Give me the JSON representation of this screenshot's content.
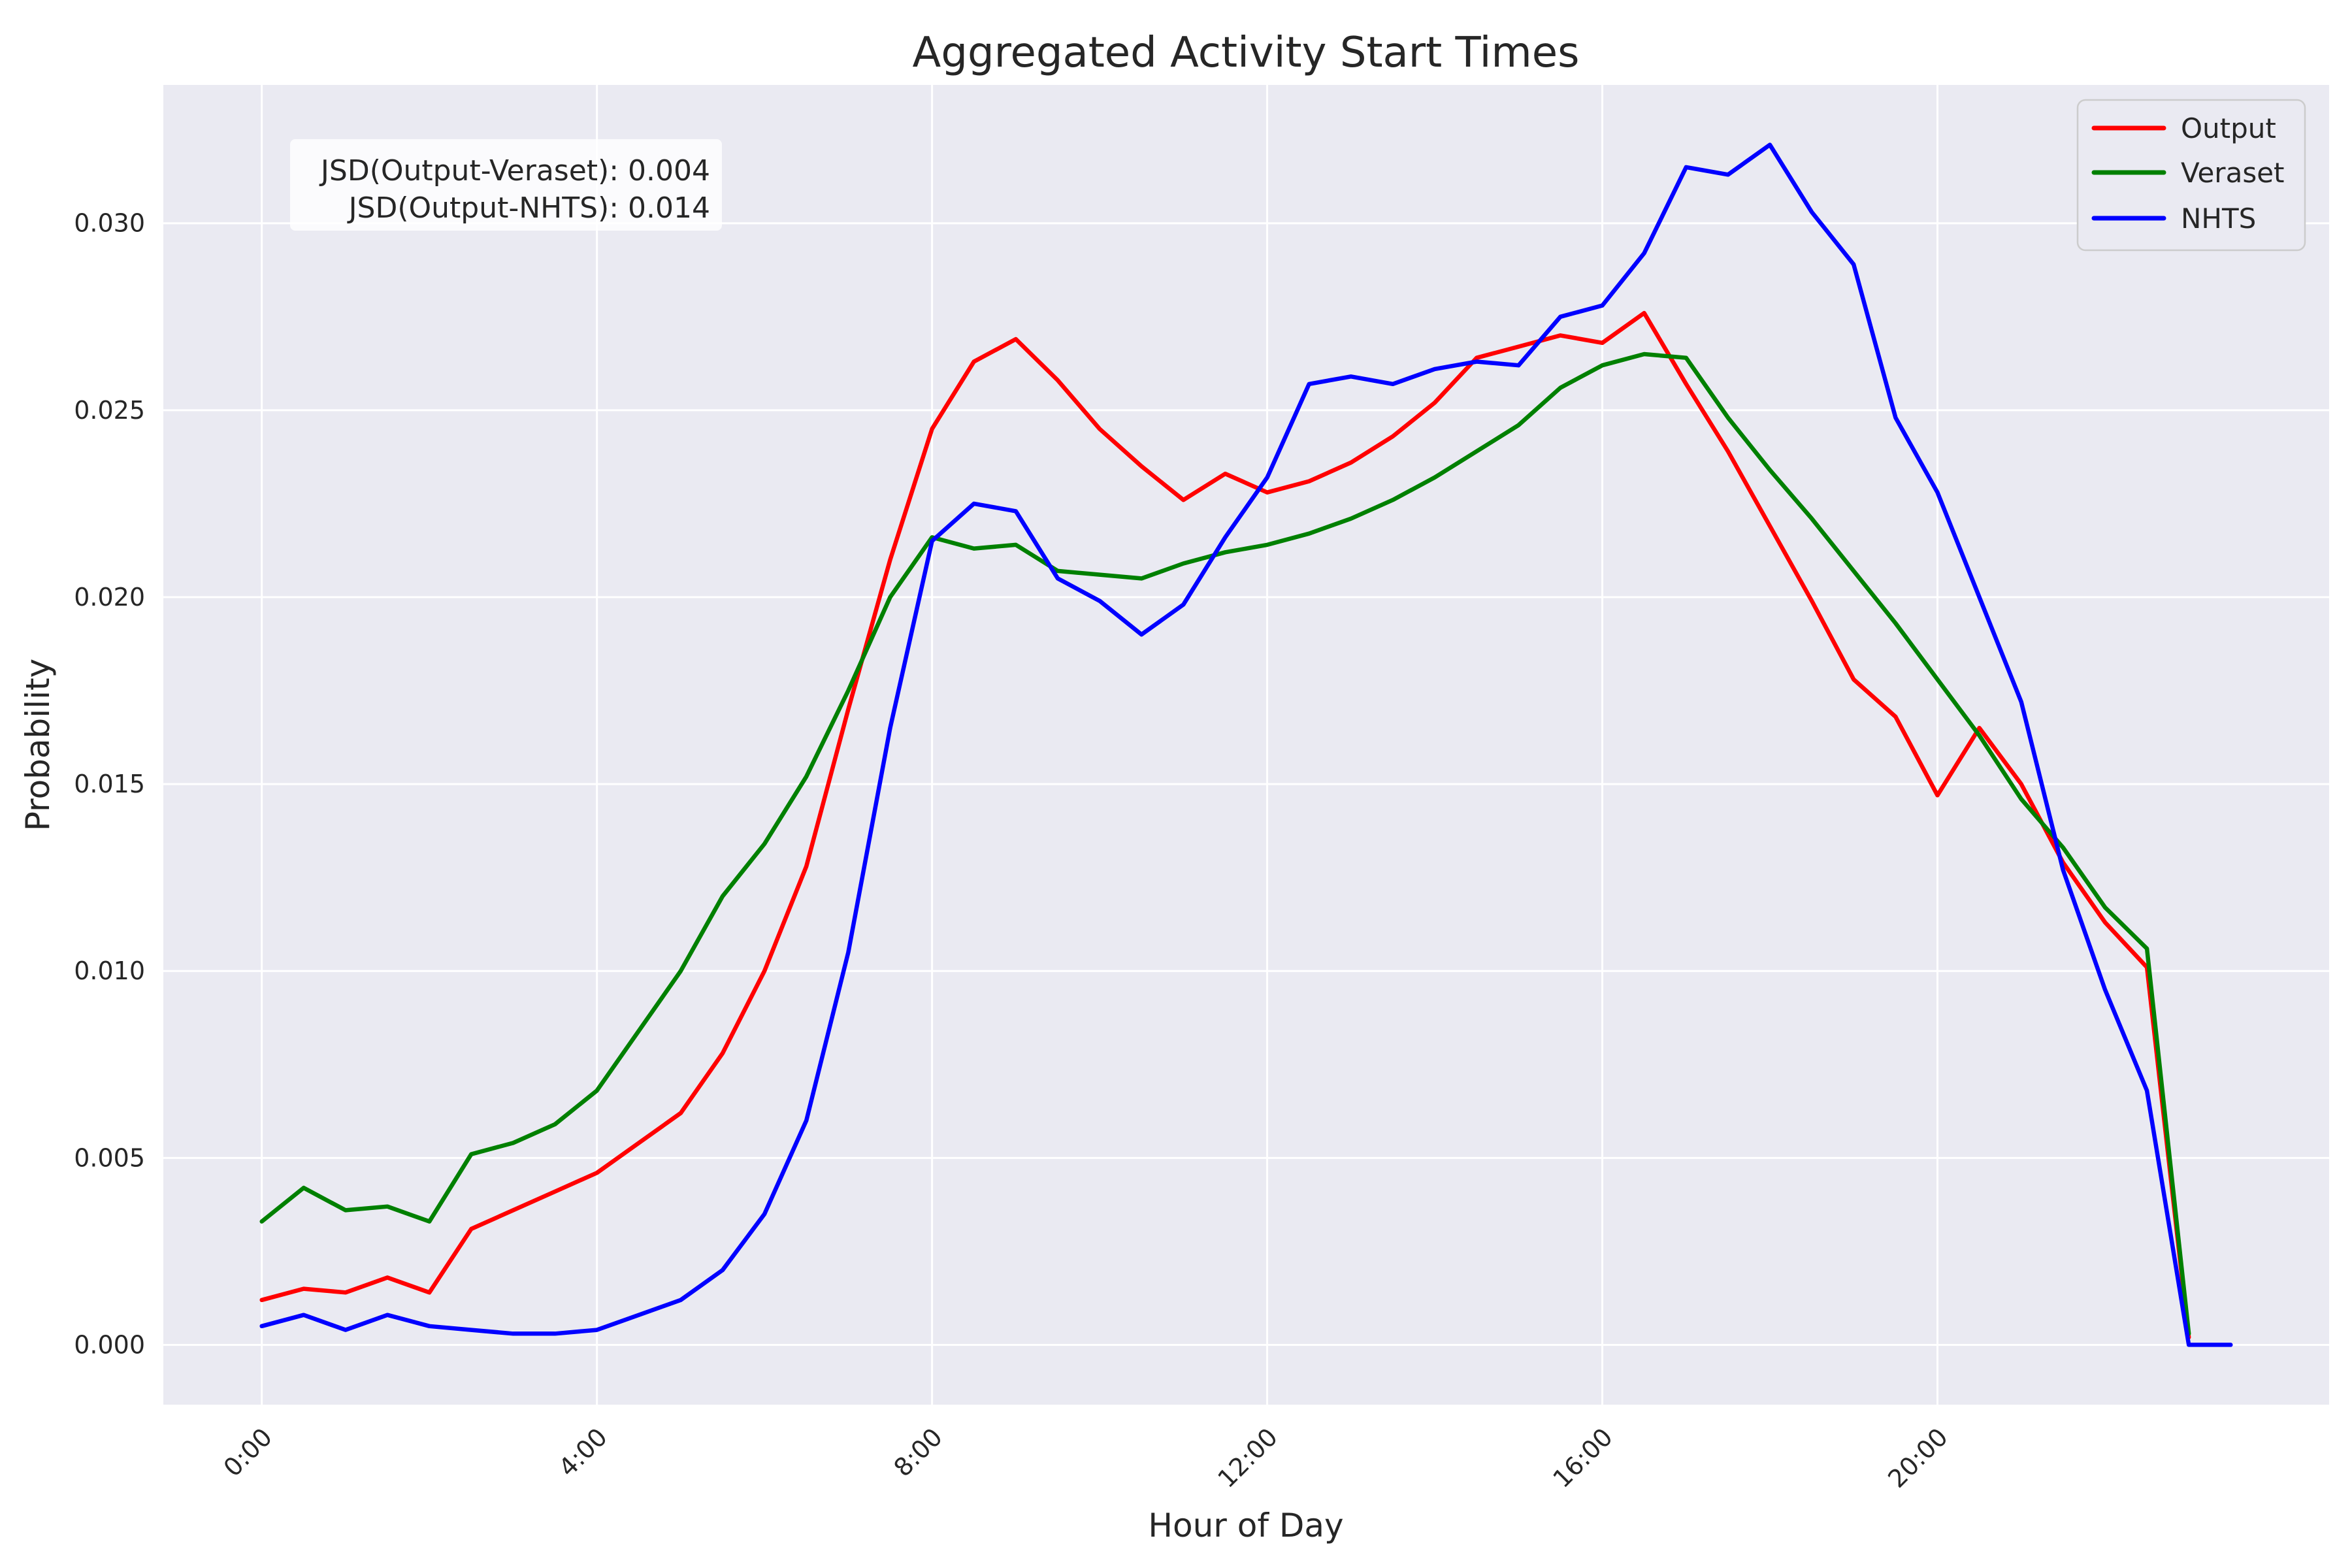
{
  "title": "Aggregated Activity Start Times",
  "axes": {
    "xlabel": "Hour of Day",
    "ylabel": "Probability"
  },
  "annotation": {
    "lines": [
      "JSD(Output-Veraset): 0.004",
      "JSD(Output-NHTS): 0.014"
    ]
  },
  "jsd": {
    "output_veraset": 0.004,
    "output_nhts": 0.014
  },
  "legend": {
    "position": "upper right",
    "entries": [
      {
        "label": "Output",
        "color": "#ff0000"
      },
      {
        "label": "Veraset",
        "color": "#008000"
      },
      {
        "label": "NHTS",
        "color": "#0000ff"
      }
    ]
  },
  "chart_data": {
    "type": "line",
    "title": "Aggregated Activity Start Times",
    "xlabel": "Hour of Day",
    "ylabel": "Probability",
    "x_unit": "hour of day (half-hour bins)",
    "grid": true,
    "background": "#eaeaf2",
    "gridcolor": "#ffffff",
    "xlim": [
      -1.175,
      24.675
    ],
    "ylim": [
      -0.0016,
      0.0337
    ],
    "xticks": {
      "positions": [
        0,
        4,
        8,
        12,
        16,
        20
      ],
      "labels": [
        "0:00",
        "4:00",
        "8:00",
        "12:00",
        "16:00",
        "20:00"
      ],
      "rotation": -45
    },
    "yticks": {
      "positions": [
        0.0,
        0.005,
        0.01,
        0.015,
        0.02,
        0.025,
        0.03
      ],
      "labels": [
        "0.000",
        "0.005",
        "0.010",
        "0.015",
        "0.020",
        "0.025",
        "0.030"
      ]
    },
    "series": [
      {
        "name": "Output",
        "color": "#ff0000",
        "x": [
          0,
          0.5,
          1,
          1.5,
          2,
          2.5,
          3,
          3.5,
          4,
          4.5,
          5,
          5.5,
          6,
          6.5,
          7,
          7.5,
          8,
          8.5,
          9,
          9.5,
          10,
          10.5,
          11,
          11.5,
          12,
          12.5,
          13,
          13.5,
          14,
          14.5,
          15,
          15.5,
          16,
          16.5,
          17,
          17.5,
          18,
          18.5,
          19,
          19.5,
          20,
          20.5,
          21,
          21.5,
          22,
          22.5,
          23
        ],
        "values": [
          0.0012,
          0.0015,
          0.0014,
          0.0018,
          0.0014,
          0.0031,
          0.0036,
          0.0041,
          0.0046,
          0.0054,
          0.0062,
          0.0078,
          0.01,
          0.0128,
          0.017,
          0.021,
          0.0245,
          0.0263,
          0.0269,
          0.0258,
          0.0245,
          0.0235,
          0.0226,
          0.0233,
          0.0228,
          0.0231,
          0.0236,
          0.0243,
          0.0252,
          0.0264,
          0.0267,
          0.027,
          0.0268,
          0.0276,
          0.0257,
          0.0239,
          0.0219,
          0.0199,
          0.0178,
          0.0168,
          0.0147,
          0.0165,
          0.015,
          0.0129,
          0.0113,
          0.0101,
          0.0002
        ]
      },
      {
        "name": "Veraset",
        "color": "#008000",
        "x": [
          0,
          0.5,
          1,
          1.5,
          2,
          2.5,
          3,
          3.5,
          4,
          4.5,
          5,
          5.5,
          6,
          6.5,
          7,
          7.5,
          8,
          8.5,
          9,
          9.5,
          10,
          10.5,
          11,
          11.5,
          12,
          12.5,
          13,
          13.5,
          14,
          14.5,
          15,
          15.5,
          16,
          16.5,
          17,
          17.5,
          18,
          18.5,
          19,
          19.5,
          20,
          20.5,
          21,
          21.5,
          22,
          22.5,
          23
        ],
        "values": [
          0.0033,
          0.0042,
          0.0036,
          0.0037,
          0.0033,
          0.0051,
          0.0054,
          0.0059,
          0.0068,
          0.0084,
          0.01,
          0.012,
          0.0134,
          0.0152,
          0.0175,
          0.02,
          0.0216,
          0.0213,
          0.0214,
          0.0207,
          0.0206,
          0.0205,
          0.0209,
          0.0212,
          0.0214,
          0.0217,
          0.0221,
          0.0226,
          0.0232,
          0.0239,
          0.0246,
          0.0256,
          0.0262,
          0.0265,
          0.0264,
          0.0248,
          0.0234,
          0.0221,
          0.0207,
          0.0193,
          0.0178,
          0.0163,
          0.0146,
          0.0133,
          0.0117,
          0.0106,
          0.0003
        ]
      },
      {
        "name": "NHTS",
        "color": "#0000ff",
        "x": [
          0,
          0.5,
          1,
          1.5,
          2,
          2.5,
          3,
          3.5,
          4,
          4.5,
          5,
          5.5,
          6,
          6.5,
          7,
          7.5,
          8,
          8.5,
          9,
          9.5,
          10,
          10.5,
          11,
          11.5,
          12,
          12.5,
          13,
          13.5,
          14,
          14.5,
          15,
          15.5,
          16,
          16.5,
          17,
          17.5,
          18,
          18.5,
          19,
          19.5,
          20,
          20.5,
          21,
          21.5,
          22,
          22.5,
          23,
          23.5
        ],
        "values": [
          0.0005,
          0.0008,
          0.0004,
          0.0008,
          0.0005,
          0.0004,
          0.0003,
          0.0003,
          0.0004,
          0.0008,
          0.0012,
          0.002,
          0.0035,
          0.006,
          0.0105,
          0.0165,
          0.0215,
          0.0225,
          0.0223,
          0.0205,
          0.0199,
          0.019,
          0.0198,
          0.0216,
          0.0232,
          0.0257,
          0.0259,
          0.0257,
          0.0261,
          0.0263,
          0.0262,
          0.0275,
          0.0278,
          0.0292,
          0.0315,
          0.0313,
          0.0321,
          0.0303,
          0.0289,
          0.0248,
          0.0228,
          0.02,
          0.0172,
          0.0127,
          0.0095,
          0.0068,
          0.0,
          0.0
        ]
      }
    ]
  }
}
